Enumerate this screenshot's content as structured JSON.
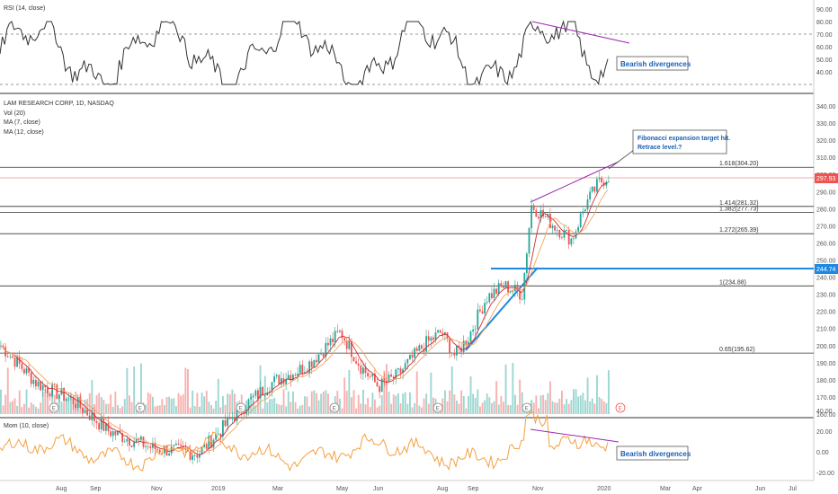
{
  "panels": {
    "rsi": {
      "label": "RSI (14, close)",
      "ticks": [
        "90.00",
        "80.00",
        "70.00",
        "60.00",
        "50.00",
        "40.00"
      ],
      "annotation": "Bearish divergences"
    },
    "main": {
      "title": "LAM RESEARCH CORP, 1D, NASDAQ",
      "legend": [
        "Vol (20)",
        "MA (7, close)",
        "MA (12, close)"
      ],
      "ticks": [
        "340.00",
        "330.00",
        "320.00",
        "310.00",
        "300.00",
        "290.00",
        "280.00",
        "270.00",
        "260.00",
        "250.00",
        "240.00",
        "230.00",
        "220.00",
        "210.00",
        "200.00",
        "190.00",
        "180.00",
        "170.00",
        "160.00"
      ],
      "last_price": "297.93",
      "level_price": "244.74",
      "callout": [
        "Fibonacci expansion target hit.",
        "Retrace level.?"
      ],
      "fib_levels": [
        {
          "label": "1.618(304.20)",
          "price": 304.2
        },
        {
          "label": "1.414(281.32)",
          "price": 281.32
        },
        {
          "label": "1.382(277.73)",
          "price": 277.73
        },
        {
          "label": "1.272(265.39)",
          "price": 265.39
        },
        {
          "label": "1(234.88)",
          "price": 234.88
        },
        {
          "label": "0.65(195.62)",
          "price": 195.62
        }
      ],
      "event_markers": [
        "E",
        "E",
        "E",
        "E",
        "E",
        "E",
        "E",
        "E"
      ]
    },
    "mom": {
      "label": "Mom (10, close)",
      "ticks": [
        "40.00",
        "20.00",
        "0.00",
        "-20.00"
      ],
      "annotation": "Bearish divergences"
    }
  },
  "x_axis": [
    "Aug",
    "Sep",
    "Nov",
    "2019",
    "Mar",
    "May",
    "Jun",
    "Aug",
    "Sep",
    "Nov",
    "2020",
    "Mar",
    "Apr",
    "Jun",
    "Jul"
  ],
  "colors": {
    "up": "#26a69a",
    "down": "#ef5350",
    "ma7": "#d32f2f",
    "ma12": "#f4a460",
    "blue": "#1e88e5",
    "purple": "#ab47bc",
    "mom": "#f5a041"
  },
  "chart_data": {
    "type": "candlestick",
    "title": "LAM RESEARCH CORP, 1D, NASDAQ",
    "price_range": [
      160,
      345
    ],
    "close_series_approx": [
      {
        "x": "Jul 2018",
        "y": 200
      },
      {
        "x": "Aug 2018",
        "y": 178
      },
      {
        "x": "Sep 2018",
        "y": 170
      },
      {
        "x": "Oct 2018",
        "y": 148
      },
      {
        "x": "Nov 2018",
        "y": 140
      },
      {
        "x": "Dec 2018",
        "y": 138
      },
      {
        "x": "Jan 2019",
        "y": 162
      },
      {
        "x": "Feb 2019",
        "y": 180
      },
      {
        "x": "Mar 2019",
        "y": 185
      },
      {
        "x": "Apr 2019",
        "y": 205
      },
      {
        "x": "May 2019",
        "y": 185
      },
      {
        "x": "Jun 2019",
        "y": 176
      },
      {
        "x": "Jul 2019",
        "y": 205
      },
      {
        "x": "Aug 2019",
        "y": 194
      },
      {
        "x": "Sep 2019",
        "y": 230
      },
      {
        "x": "Oct 2019",
        "y": 240
      },
      {
        "x": "Nov 2019",
        "y": 282
      },
      {
        "x": "Dec 2019",
        "y": 270
      },
      {
        "x": "Jan 2020",
        "y": 297.93
      }
    ]
  }
}
